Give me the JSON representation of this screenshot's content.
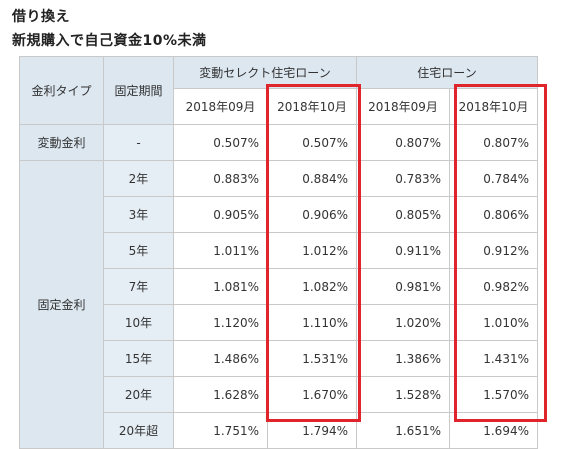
{
  "heading": {
    "line1": "借り換え",
    "line2": "新規購入で自己資金10%未満"
  },
  "table": {
    "header_rate_type": "金利タイプ",
    "header_period": "固定期間",
    "group_a": "変動セレクト住宅ローン",
    "group_b": "住宅ローン",
    "months": [
      "2018年09月",
      "2018年10月",
      "2018年09月",
      "2018年10月"
    ],
    "variable": {
      "type": "変動金利",
      "period": "-",
      "values": [
        "0.507%",
        "0.507%",
        "0.807%",
        "0.807%"
      ]
    },
    "fixed_label": "固定金利",
    "fixed_rows": [
      {
        "period": "2年",
        "values": [
          "0.883%",
          "0.884%",
          "0.783%",
          "0.784%"
        ]
      },
      {
        "period": "3年",
        "values": [
          "0.905%",
          "0.906%",
          "0.805%",
          "0.806%"
        ]
      },
      {
        "period": "5年",
        "values": [
          "1.011%",
          "1.012%",
          "0.911%",
          "0.912%"
        ]
      },
      {
        "period": "7年",
        "values": [
          "1.081%",
          "1.082%",
          "0.981%",
          "0.982%"
        ]
      },
      {
        "period": "10年",
        "values": [
          "1.120%",
          "1.110%",
          "1.020%",
          "1.010%"
        ]
      },
      {
        "period": "15年",
        "values": [
          "1.486%",
          "1.531%",
          "1.386%",
          "1.431%"
        ]
      },
      {
        "period": "20年",
        "values": [
          "1.628%",
          "1.670%",
          "1.528%",
          "1.570%"
        ]
      },
      {
        "period": "20年超",
        "values": [
          "1.751%",
          "1.794%",
          "1.651%",
          "1.694%"
        ]
      }
    ]
  },
  "colors": {
    "header_bg": "#dce7f0",
    "highlight": "#e0242c"
  }
}
